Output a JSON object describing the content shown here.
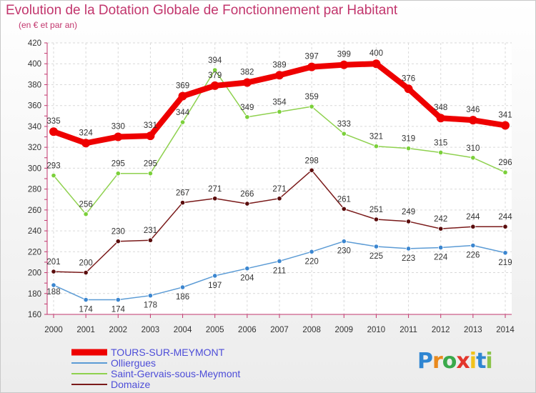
{
  "title": "Evolution de la Dotation Globale de Fonctionnement par Habitant",
  "subtitle": "(en € et par an)",
  "logo": {
    "letters": [
      "P",
      "r",
      "o",
      "x",
      "i",
      "t",
      "i"
    ],
    "colors": [
      "#2f86d2",
      "#e98a1e",
      "#3aa94b",
      "#e3362c",
      "#f2c21b",
      "#2f86d2",
      "#8bc34a"
    ]
  },
  "chart_data": {
    "type": "line",
    "categories": [
      "2000",
      "2001",
      "2002",
      "2003",
      "2004",
      "2005",
      "2006",
      "2007",
      "2008",
      "2009",
      "2010",
      "2011",
      "2012",
      "2013",
      "2014"
    ],
    "ylim": [
      160,
      420
    ],
    "yticks": [
      "160",
      "180",
      "200",
      "220",
      "240",
      "260",
      "280",
      "300",
      "320",
      "340",
      "360",
      "380",
      "400",
      "420"
    ],
    "grid": true,
    "legend_position": "bottom-left",
    "series": [
      {
        "name": "TOURS-SUR-MEYMONT",
        "color": "#ee0000",
        "width": 8,
        "values": [
          335,
          324,
          330,
          331,
          369,
          379,
          382,
          389,
          397,
          399,
          400,
          376,
          348,
          346,
          341
        ]
      },
      {
        "name": "Olliergues",
        "color": "#5b9bd5",
        "width": 1.5,
        "values": [
          188,
          174,
          174,
          178,
          186,
          197,
          204,
          211,
          220,
          230,
          225,
          223,
          224,
          226,
          219
        ]
      },
      {
        "name": "Saint-Gervais-sous-Meymont",
        "color": "#8fd14f",
        "width": 1.5,
        "values": [
          293,
          256,
          295,
          295,
          344,
          394,
          349,
          354,
          359,
          333,
          321,
          319,
          315,
          310,
          296
        ]
      },
      {
        "name": "Domaize",
        "color": "#7a1a1a",
        "width": 1.5,
        "values": [
          201,
          200,
          230,
          231,
          267,
          271,
          266,
          271,
          298,
          261,
          251,
          249,
          242,
          244,
          244
        ]
      }
    ]
  }
}
